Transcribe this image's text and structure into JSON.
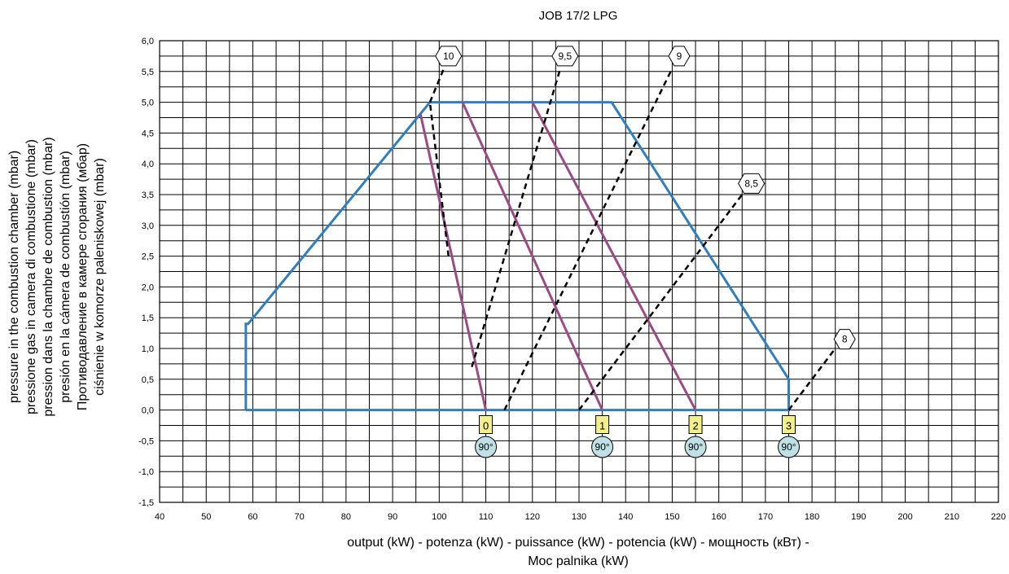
{
  "chart_data": {
    "type": "line",
    "title": "JOB 17/2 LPG",
    "xlabel_lines": [
      "output (kW) - potenza (kW) - puissance (kW) - potencia (kW) - мощность (кВт) -",
      "Moc palnika  (kW)"
    ],
    "ylabel_lines": [
      "pressure in the combustion chamber (mbar)",
      "pressione gas in camera di combustione (mbar)",
      "pression dans la chambre de combustion (mbar)",
      "presión en la cámera de combustión (mbar)",
      "Противодавление в камере сгорания (мбар)",
      "ciśnienie w komorze paleniskowej (mbar)"
    ],
    "xlim": [
      40,
      220
    ],
    "ylim": [
      -1.5,
      6.0
    ],
    "x_ticks": [
      40,
      50,
      60,
      70,
      80,
      90,
      100,
      110,
      120,
      130,
      140,
      150,
      160,
      170,
      180,
      190,
      200,
      210,
      220
    ],
    "x_tick_labels": [
      "40",
      "50",
      "60",
      "70",
      "80",
      "90",
      "100",
      "110",
      "120",
      "130",
      "140",
      "150",
      "160",
      "170",
      "180",
      "190",
      "200",
      "210",
      "220"
    ],
    "y_ticks": [
      6.0,
      5.5,
      5.0,
      4.5,
      4.0,
      3.5,
      3.0,
      2.5,
      2.0,
      1.5,
      1.0,
      0.5,
      0.0,
      -0.5,
      -1.0,
      -1.5
    ],
    "y_tick_labels": [
      "6,0",
      "5,5",
      "5,0",
      "4,5",
      "4,0",
      "3,5",
      "3,0",
      "2,5",
      "2,0",
      "1,5",
      "1,0",
      "0,5",
      "0,0",
      "-0,5",
      "-1,0",
      "-1,5"
    ],
    "grid": true,
    "colors": {
      "envelope": "#2f7fbf",
      "adjustment": "#9a4a86",
      "dashed": "#000000",
      "marker_box_fill": "#f3ef8a",
      "marker_circle_fill": "#bfe1e6",
      "grid": "#000000"
    },
    "envelope": {
      "x": [
        58.5,
        58.5,
        59.0,
        98.0,
        137.0,
        175.0,
        175.0,
        58.5
      ],
      "y": [
        0.0,
        1.4,
        1.4,
        5.0,
        5.0,
        0.5,
        0.0,
        0.0
      ]
    },
    "adjustment_lines": [
      {
        "x": [
          96.0,
          110.0
        ],
        "y": [
          4.8,
          0.0
        ]
      },
      {
        "x": [
          105.0,
          135.0
        ],
        "y": [
          5.0,
          0.0
        ]
      },
      {
        "x": [
          120.0,
          155.0
        ],
        "y": [
          5.0,
          0.0
        ]
      }
    ],
    "dashed_lines": [
      {
        "label": "10",
        "x": [
          102.0,
          98.0
        ],
        "y": [
          2.5,
          5.0
        ],
        "x2": [
          98.0,
          101.0
        ],
        "y2": [
          5.0,
          5.55
        ],
        "label_x": 102.0,
        "label_y": 5.75
      },
      {
        "label": "9,5",
        "x": [
          107.0,
          126.0
        ],
        "y": [
          0.7,
          5.55
        ],
        "label_x": 127.0,
        "label_y": 5.75
      },
      {
        "label": "9",
        "x": [
          114.0,
          150.0
        ],
        "y": [
          0.0,
          5.55
        ],
        "label_x": 151.5,
        "label_y": 5.75
      },
      {
        "label": "8,5",
        "x": [
          130.0,
          165.0
        ],
        "y": [
          0.0,
          3.5
        ],
        "label_x": 167.0,
        "label_y": 3.68
      },
      {
        "label": "8",
        "x": [
          175.0,
          185.0
        ],
        "y": [
          0.0,
          1.0
        ],
        "label_x": 187.0,
        "label_y": 1.15
      }
    ],
    "markers": [
      {
        "box": "0",
        "circle": "90°",
        "x": 110.0
      },
      {
        "box": "1",
        "circle": "90°",
        "x": 135.0
      },
      {
        "box": "2",
        "circle": "90°",
        "x": 155.0
      },
      {
        "box": "3",
        "circle": "90°",
        "x": 175.0
      }
    ],
    "marker_box_y": -0.25,
    "marker_circle_y": -0.6
  }
}
